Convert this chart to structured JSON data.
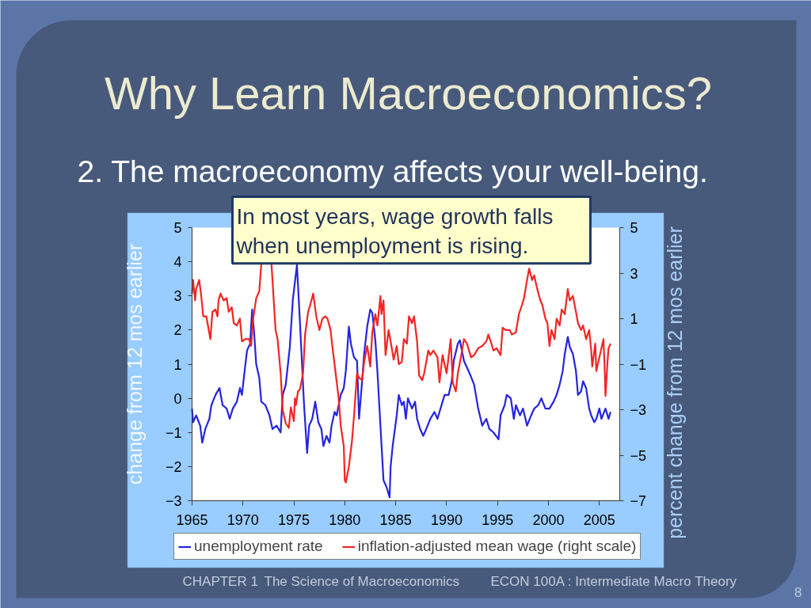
{
  "chart_data": {
    "type": "line",
    "title": "Why Learn Macroeconomics?",
    "subtitle": "2. The macroeconomy affects your well-being.",
    "ylabel": "change from 12 mos earlier",
    "y2label": "percent change from 12 mos earlier",
    "annotations": [
      "In most years, wage growth falls when unemployment is rising.",
      "CHAPTER 1",
      "The Science of Macroeconomics",
      "ECON 100A : Intermediate Macro Theory",
      "8"
    ],
    "xlim": [
      1965,
      2007
    ],
    "xticks": [
      1965,
      1970,
      1975,
      1980,
      1985,
      1990,
      1995,
      2000,
      2005
    ],
    "ylim": [
      -3,
      5
    ],
    "yticks": [
      -3,
      -2,
      -1,
      0,
      1,
      2,
      3,
      4,
      5
    ],
    "y2lim": [
      -7,
      5
    ],
    "y2ticks": [
      -7,
      -5,
      -3,
      -1,
      1,
      3,
      5
    ],
    "legend": "bottom",
    "series": [
      {
        "name": "unemployment rate",
        "color": "#2424e0",
        "x": [
          1965.0,
          1965.1,
          1965.4,
          1965.8,
          1966.0,
          1966.3,
          1966.7,
          1966.9,
          1967.3,
          1967.7,
          1968.0,
          1968.4,
          1968.7,
          1969.0,
          1969.4,
          1969.7,
          1969.9,
          1970.2,
          1970.4,
          1970.7,
          1970.9,
          1971.1,
          1971.3,
          1971.6,
          1971.8,
          1972.2,
          1972.6,
          1972.9,
          1973.3,
          1973.7,
          1973.9,
          1974.2,
          1974.6,
          1974.9,
          1975.3,
          1975.6,
          1976.0,
          1976.3,
          1976.5,
          1976.8,
          1977.1,
          1977.4,
          1977.7,
          1977.9,
          1978.2,
          1978.5,
          1978.7,
          1979.0,
          1979.2,
          1979.6,
          1979.9,
          1980.1,
          1980.4,
          1980.6,
          1980.9,
          1981.2,
          1981.4,
          1981.7,
          1981.9,
          1982.2,
          1982.5,
          1982.7,
          1983.0,
          1983.2,
          1983.5,
          1983.8,
          1984.1,
          1984.4,
          1984.5,
          1984.7,
          1985.1,
          1985.3,
          1985.6,
          1985.8,
          1986.0,
          1986.2,
          1986.6,
          1986.9,
          1987.1,
          1987.4,
          1987.7,
          1988.0,
          1988.4,
          1988.8,
          1989.1,
          1989.5,
          1989.8,
          1990.2,
          1990.5,
          1990.7,
          1991.1,
          1991.3,
          1991.7,
          1992.0,
          1992.3,
          1992.7,
          1993.1,
          1993.5,
          1993.9,
          1994.2,
          1994.6,
          1995.1,
          1995.3,
          1995.7,
          1995.9,
          1996.3,
          1996.6,
          1996.8,
          1997.2,
          1997.5,
          1997.9,
          1998.3,
          1998.6,
          1999.0,
          1999.3,
          1999.7,
          2000.1,
          2000.5,
          2000.8,
          2001.1,
          2001.4,
          2001.6,
          2001.9,
          2002.1,
          2002.4,
          2002.7,
          2002.9,
          2003.2,
          2003.4,
          2003.7,
          2004.0,
          2004.2,
          2004.5,
          2004.7,
          2005.0,
          2005.2,
          2005.6,
          2005.9,
          2006.1
        ],
        "values": [
          -0.3,
          -0.7,
          -0.5,
          -0.8,
          -1.3,
          -0.9,
          -0.6,
          -0.2,
          0.1,
          0.3,
          -0.2,
          -0.3,
          -0.6,
          -0.3,
          -0.1,
          0.3,
          0.1,
          0.9,
          1.4,
          1.6,
          2.6,
          1.9,
          1.0,
          0.6,
          -0.1,
          -0.2,
          -0.5,
          -0.9,
          -0.8,
          -1.0,
          0.1,
          0.4,
          1.5,
          2.9,
          3.9,
          2.2,
          -0.2,
          -1.6,
          -0.8,
          -0.6,
          -0.1,
          -0.7,
          -0.9,
          -1.4,
          -1.1,
          -1.3,
          -0.8,
          -0.4,
          -0.5,
          0.1,
          0.3,
          0.8,
          2.1,
          1.6,
          1.2,
          1.1,
          -0.6,
          0.5,
          1.3,
          2.1,
          2.6,
          2.5,
          1.7,
          0.8,
          -0.8,
          -2.4,
          -2.6,
          -2.9,
          -2.0,
          -1.4,
          -0.5,
          0.1,
          -0.2,
          -0.1,
          -0.6,
          0.0,
          -0.3,
          -0.1,
          -0.6,
          -0.9,
          -1.1,
          -0.9,
          -0.6,
          -0.4,
          -0.6,
          -0.2,
          0.1,
          0.1,
          0.5,
          1.1,
          1.6,
          1.7,
          1.1,
          0.9,
          0.7,
          0.4,
          -0.3,
          -0.8,
          -0.6,
          -0.9,
          -1.0,
          -1.2,
          -0.5,
          -0.2,
          0.1,
          0.0,
          -0.6,
          -0.2,
          -0.5,
          -0.3,
          -0.8,
          -0.5,
          -0.3,
          -0.2,
          0.0,
          -0.3,
          -0.3,
          -0.1,
          0.1,
          0.4,
          0.8,
          1.3,
          1.8,
          1.5,
          1.3,
          0.8,
          0.1,
          0.2,
          0.5,
          0.3,
          -0.3,
          -0.5,
          -0.7,
          -0.6,
          -0.3,
          -0.6,
          -0.3,
          -0.6,
          -0.4
        ]
      },
      {
        "name": "inflation-adjusted mean wage (right scale)",
        "color": "#f42424",
        "axis": "y2",
        "x": [
          1965.0,
          1965.1,
          1965.3,
          1965.4,
          1965.7,
          1965.9,
          1966.1,
          1966.4,
          1966.6,
          1966.8,
          1967.0,
          1967.3,
          1967.5,
          1967.6,
          1967.8,
          1968.1,
          1968.4,
          1968.6,
          1968.9,
          1969.1,
          1969.4,
          1969.7,
          1969.9,
          1970.2,
          1970.6,
          1970.8,
          1971.0,
          1971.3,
          1971.6,
          1971.8,
          1972.3,
          1972.8,
          1973.2,
          1973.4,
          1973.7,
          1973.9,
          1974.2,
          1974.5,
          1974.7,
          1975.0,
          1975.1,
          1975.2,
          1975.4,
          1975.6,
          1975.9,
          1976.1,
          1976.4,
          1976.6,
          1976.9,
          1977.2,
          1977.5,
          1977.8,
          1978.1,
          1978.3,
          1978.6,
          1978.8,
          1979.1,
          1979.4,
          1979.6,
          1979.9,
          1980.0,
          1980.1,
          1980.4,
          1980.7,
          1980.9,
          1981.2,
          1981.4,
          1981.7,
          1981.9,
          1982.2,
          1982.5,
          1982.7,
          1983.0,
          1983.2,
          1983.5,
          1983.6,
          1983.8,
          1984.0,
          1984.3,
          1984.5,
          1984.8,
          1985.1,
          1985.3,
          1985.6,
          1985.8,
          1986.1,
          1986.3,
          1986.6,
          1986.8,
          1987.1,
          1987.3,
          1987.6,
          1987.8,
          1988.2,
          1988.4,
          1988.7,
          1989.1,
          1989.3,
          1989.6,
          1990.0,
          1990.4,
          1990.6,
          1990.9,
          1991.1,
          1991.4,
          1991.7,
          1992.0,
          1992.4,
          1992.7,
          1993.1,
          1993.5,
          1993.9,
          1994.1,
          1994.4,
          1994.6,
          1994.9,
          1995.3,
          1995.5,
          1995.8,
          1996.2,
          1996.4,
          1996.8,
          1997.1,
          1997.4,
          1997.6,
          1997.9,
          1998.1,
          1998.4,
          1998.6,
          1998.9,
          1999.2,
          1999.4,
          1999.7,
          1999.9,
          2000.1,
          2000.3,
          2000.6,
          2000.8,
          2001.1,
          2001.3,
          2001.6,
          2001.9,
          2002.1,
          2002.4,
          2002.7,
          2002.9,
          2003.2,
          2003.4,
          2003.7,
          2004.0,
          2004.2,
          2004.3,
          2004.6,
          2004.7,
          2005.0,
          2005.4,
          2005.5,
          2005.6,
          2005.8,
          2005.9,
          2006.1
        ],
        "values": [
          2.1,
          2.7,
          1.8,
          2.3,
          2.7,
          2.0,
          1.1,
          1.1,
          0.6,
          0.1,
          1.3,
          1.4,
          1.1,
          1.8,
          2.1,
          1.8,
          1.9,
          1.3,
          1.5,
          0.8,
          0.7,
          1.0,
          0.0,
          0.1,
          0.1,
          -0.2,
          1.0,
          1.9,
          2.2,
          3.4,
          null,
          3.4,
          0.5,
          0.1,
          -1.4,
          -3.0,
          -3.6,
          -3.8,
          -2.9,
          -3.5,
          -2.5,
          -2.8,
          -2.2,
          -2.1,
          -1.4,
          0.3,
          1.3,
          1.6,
          2.1,
          1.1,
          0.5,
          1.0,
          1.1,
          1.0,
          0.5,
          -0.3,
          -1.4,
          -2.5,
          -3.7,
          -4.6,
          -6.1,
          -6.2,
          -5.5,
          -4.4,
          -3.3,
          -1.4,
          -1.6,
          -1.7,
          -0.9,
          -0.2,
          -1.1,
          0.4,
          1.2,
          0.7,
          2.0,
          1.2,
          1.8,
          -0.6,
          0.5,
          0.0,
          -0.8,
          -0.2,
          -1.0,
          -0.9,
          0.1,
          -0.1,
          1.1,
          0.8,
          1.1,
          0.0,
          -1.5,
          -1.7,
          -1.4,
          -0.4,
          -0.6,
          -0.4,
          -0.7,
          -1.8,
          -0.6,
          -1.4,
          0.1,
          -1.8,
          -2.2,
          -1.4,
          -0.7,
          0.1,
          -0.1,
          -0.7,
          -0.6,
          -0.3,
          -0.2,
          0.0,
          0.3,
          -0.1,
          -0.4,
          -0.3,
          -0.6,
          0.6,
          0.5,
          0.5,
          0.3,
          0.4,
          1.2,
          1.6,
          1.9,
          2.7,
          3.2,
          2.7,
          2.9,
          2.3,
          1.8,
          1.6,
          1.0,
          0.8,
          -0.2,
          0.5,
          0.1,
          1.0,
          0.7,
          1.4,
          1.2,
          2.3,
          1.8,
          2.0,
          1.3,
          0.8,
          0.5,
          0.7,
          0.1,
          0.5,
          -0.4,
          -1.1,
          -0.1,
          -1.3,
          -0.7,
          0.1,
          -0.9,
          -2.4,
          -0.9,
          -0.3,
          -0.1
        ]
      }
    ]
  }
}
